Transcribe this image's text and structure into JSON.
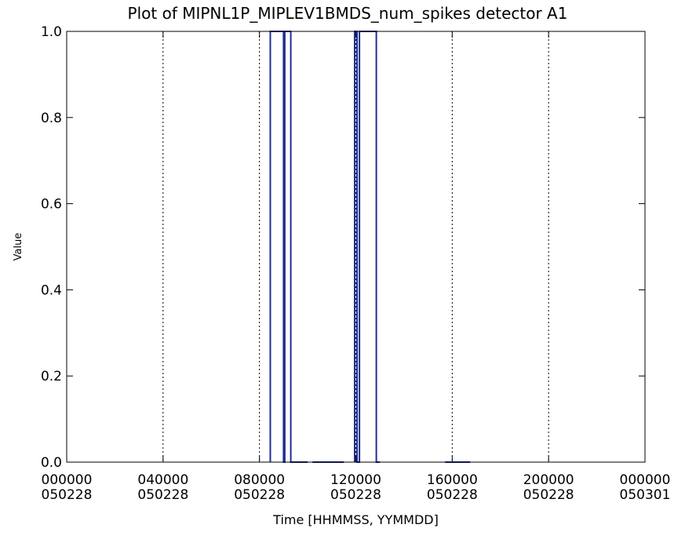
{
  "chart_data": {
    "type": "line",
    "title": "Plot of  MIPNL1P_MIPLEV1BMDS_num_spikes detector A1",
    "xlabel": "Time [HHMMSS, YYMMDD]",
    "ylabel": "Value",
    "xlim": [
      0,
      24
    ],
    "ylim": [
      0,
      1
    ],
    "x_unit_note": "hours since 000000 050228",
    "x_ticks": [
      {
        "v": 0,
        "time": "000000",
        "date": "050228"
      },
      {
        "v": 4,
        "time": "040000",
        "date": "050228"
      },
      {
        "v": 8,
        "time": "080000",
        "date": "050228"
      },
      {
        "v": 12,
        "time": "120000",
        "date": "050228"
      },
      {
        "v": 16,
        "time": "160000",
        "date": "050228"
      },
      {
        "v": 20,
        "time": "200000",
        "date": "050228"
      },
      {
        "v": 24,
        "time": "000000",
        "date": "050301"
      }
    ],
    "y_ticks": [
      {
        "v": 0.0,
        "label": "0.0"
      },
      {
        "v": 0.2,
        "label": "0.2"
      },
      {
        "v": 0.4,
        "label": "0.4"
      },
      {
        "v": 0.6,
        "label": "0.6"
      },
      {
        "v": 0.8,
        "label": "0.8"
      },
      {
        "v": 1.0,
        "label": "1.0"
      }
    ],
    "vertical_dotted_lines_x": [
      4,
      8,
      12,
      16,
      20
    ],
    "grid": false,
    "line_color": "#1f2f8f",
    "series": [
      {
        "segments": [
          {
            "x": [
              8.45,
              8.45,
              9.0,
              9.0,
              9.05,
              9.05,
              9.3,
              9.3,
              9.4,
              9.4,
              10.0
            ],
            "y": [
              0,
              1,
              1,
              0,
              0,
              1,
              1,
              0,
              0,
              0,
              0
            ]
          },
          {
            "x": [
              10.2,
              11.5
            ],
            "y": [
              0,
              0
            ]
          },
          {
            "x": [
              11.95,
              11.95,
              12.05,
              12.05,
              12.15,
              12.15,
              12.85,
              12.85,
              13.0
            ],
            "y": [
              0,
              1,
              1,
              0,
              0,
              1,
              1,
              0,
              0
            ]
          },
          {
            "x": [
              15.7,
              16.75
            ],
            "y": [
              0,
              0
            ]
          }
        ]
      }
    ]
  }
}
